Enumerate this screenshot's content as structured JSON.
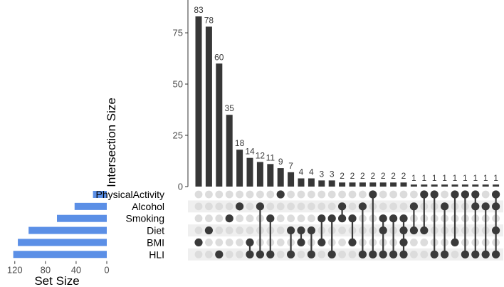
{
  "chart_data": {
    "type": "bar",
    "subtype": "upset-plot",
    "sets": [
      "PhysicalActivity",
      "Alcohol",
      "Smoking",
      "Diet",
      "BMI",
      "HLI"
    ],
    "set_sizes": [
      18,
      42,
      65,
      102,
      116,
      122
    ],
    "intersections": [
      {
        "sets": [
          "BMI"
        ],
        "size": 83
      },
      {
        "sets": [
          "Diet"
        ],
        "size": 78
      },
      {
        "sets": [
          "HLI"
        ],
        "size": 60
      },
      {
        "sets": [
          "Smoking"
        ],
        "size": 35
      },
      {
        "sets": [
          "Alcohol"
        ],
        "size": 18
      },
      {
        "sets": [
          "BMI",
          "HLI"
        ],
        "size": 14
      },
      {
        "sets": [
          "Alcohol",
          "HLI"
        ],
        "size": 12
      },
      {
        "sets": [
          "Smoking",
          "HLI"
        ],
        "size": 11
      },
      {
        "sets": [
          "PhysicalActivity"
        ],
        "size": 9
      },
      {
        "sets": [
          "Diet",
          "HLI"
        ],
        "size": 7
      },
      {
        "sets": [
          "Diet",
          "BMI"
        ],
        "size": 4
      },
      {
        "sets": [
          "Diet",
          "HLI"
        ],
        "size": 4
      },
      {
        "sets": [
          "Smoking",
          "BMI"
        ],
        "size": 3
      },
      {
        "sets": [
          "Smoking",
          "HLI"
        ],
        "size": 3
      },
      {
        "sets": [
          "Alcohol",
          "Smoking"
        ],
        "size": 2
      },
      {
        "sets": [
          "Smoking",
          "BMI"
        ],
        "size": 2
      },
      {
        "sets": [
          "Alcohol",
          "HLI"
        ],
        "size": 2
      },
      {
        "sets": [
          "PhysicalActivity",
          "HLI"
        ],
        "size": 2
      },
      {
        "sets": [
          "Smoking",
          "Diet",
          "HLI"
        ],
        "size": 2
      },
      {
        "sets": [
          "Smoking",
          "HLI"
        ],
        "size": 2
      },
      {
        "sets": [
          "Smoking",
          "Diet",
          "BMI",
          "HLI"
        ],
        "size": 2
      },
      {
        "sets": [
          "Alcohol",
          "Diet"
        ],
        "size": 1
      },
      {
        "sets": [
          "PhysicalActivity",
          "Diet"
        ],
        "size": 1
      },
      {
        "sets": [
          "PhysicalActivity",
          "HLI"
        ],
        "size": 1
      },
      {
        "sets": [
          "Alcohol",
          "HLI"
        ],
        "size": 1
      },
      {
        "sets": [
          "PhysicalActivity",
          "BMI"
        ],
        "size": 1
      },
      {
        "sets": [
          "PhysicalActivity",
          "HLI"
        ],
        "size": 1
      },
      {
        "sets": [
          "PhysicalActivity",
          "Alcohol",
          "HLI"
        ],
        "size": 1
      },
      {
        "sets": [
          "Alcohol",
          "HLI"
        ],
        "size": 1
      },
      {
        "sets": [
          "PhysicalActivity",
          "Alcohol",
          "Diet",
          "HLI"
        ],
        "size": 1
      }
    ],
    "ylabel": "Intersection Size",
    "y_ticks": [
      0,
      25,
      50,
      75
    ],
    "ylim": [
      0,
      91
    ],
    "set_size_label": "Set Size",
    "set_size_ticks": [
      0,
      40,
      80,
      120
    ],
    "set_size_xlim": [
      0,
      130
    ],
    "bar_color": "#373737",
    "set_bar_color": "#5b8fe6",
    "dot_active_color": "#3a3a3a",
    "dot_inactive_color": "#dcdcdc",
    "stripe_color": "#efefef"
  }
}
